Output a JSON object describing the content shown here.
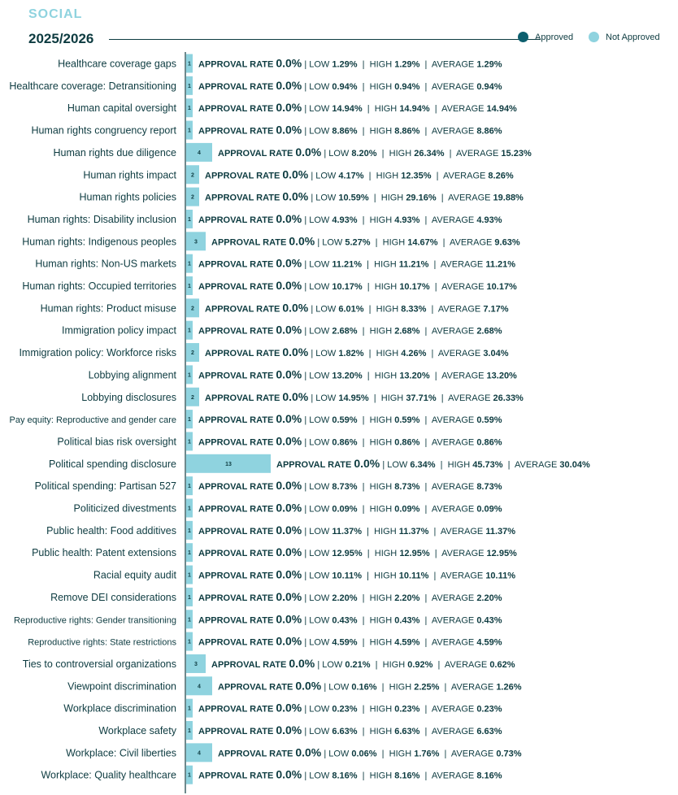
{
  "header": {
    "section": "SOCIAL",
    "year": "2025/2026",
    "legend": [
      {
        "label": "Approved",
        "color": "#0d5f6e"
      },
      {
        "label": "Not Approved",
        "color": "#8fd3df"
      }
    ]
  },
  "labels": {
    "approval_rate": "APPROVAL RATE",
    "low": "LOW",
    "high": "HIGH",
    "average": "AVERAGE",
    "separator": "|"
  },
  "chart_data": {
    "type": "bar",
    "orientation": "horizontal",
    "title": "SOCIAL",
    "subtitle": "2025/2026",
    "series": [
      {
        "name": "Approved",
        "color": "#0d5f6e"
      },
      {
        "name": "Not Approved",
        "color": "#8fd3df"
      }
    ],
    "rows": [
      {
        "category": "Healthcare coverage gaps",
        "count": 1,
        "approval_rate": "0.0%",
        "low": "1.29%",
        "high": "1.29%",
        "average": "1.29%"
      },
      {
        "category": "Healthcare coverage: Detransitioning",
        "count": 1,
        "approval_rate": "0.0%",
        "low": "0.94%",
        "high": "0.94%",
        "average": "0.94%"
      },
      {
        "category": "Human capital oversight",
        "count": 1,
        "approval_rate": "0.0%",
        "low": "14.94%",
        "high": "14.94%",
        "average": "14.94%"
      },
      {
        "category": "Human rights congruency report",
        "count": 1,
        "approval_rate": "0.0%",
        "low": "8.86%",
        "high": "8.86%",
        "average": "8.86%"
      },
      {
        "category": "Human rights due diligence",
        "count": 4,
        "approval_rate": "0.0%",
        "low": "8.20%",
        "high": "26.34%",
        "average": "15.23%"
      },
      {
        "category": "Human rights impact",
        "count": 2,
        "approval_rate": "0.0%",
        "low": "4.17%",
        "high": "12.35%",
        "average": "8.26%"
      },
      {
        "category": "Human rights policies",
        "count": 2,
        "approval_rate": "0.0%",
        "low": "10.59%",
        "high": "29.16%",
        "average": "19.88%"
      },
      {
        "category": "Human rights: Disability inclusion",
        "count": 1,
        "approval_rate": "0.0%",
        "low": "4.93%",
        "high": "4.93%",
        "average": "4.93%"
      },
      {
        "category": "Human rights: Indigenous peoples",
        "count": 3,
        "approval_rate": "0.0%",
        "low": "5.27%",
        "high": "14.67%",
        "average": "9.63%"
      },
      {
        "category": "Human rights: Non-US markets",
        "count": 1,
        "approval_rate": "0.0%",
        "low": "11.21%",
        "high": "11.21%",
        "average": "11.21%"
      },
      {
        "category": "Human rights: Occupied territories",
        "count": 1,
        "approval_rate": "0.0%",
        "low": "10.17%",
        "high": "10.17%",
        "average": "10.17%"
      },
      {
        "category": "Human rights: Product misuse",
        "count": 2,
        "approval_rate": "0.0%",
        "low": "6.01%",
        "high": "8.33%",
        "average": "7.17%"
      },
      {
        "category": "Immigration policy impact",
        "count": 1,
        "approval_rate": "0.0%",
        "low": "2.68%",
        "high": "2.68%",
        "average": "2.68%"
      },
      {
        "category": "Immigration policy: Workforce risks",
        "count": 2,
        "approval_rate": "0.0%",
        "low": "1.82%",
        "high": "4.26%",
        "average": "3.04%"
      },
      {
        "category": "Lobbying alignment",
        "count": 1,
        "approval_rate": "0.0%",
        "low": "13.20%",
        "high": "13.20%",
        "average": "13.20%"
      },
      {
        "category": "Lobbying disclosures",
        "count": 2,
        "approval_rate": "0.0%",
        "low": "14.95%",
        "high": "37.71%",
        "average": "26.33%"
      },
      {
        "category": "Pay equity: Reproductive and gender care",
        "count": 1,
        "approval_rate": "0.0%",
        "low": "0.59%",
        "high": "0.59%",
        "average": "0.59%"
      },
      {
        "category": "Political bias risk oversight",
        "count": 1,
        "approval_rate": "0.0%",
        "low": "0.86%",
        "high": "0.86%",
        "average": "0.86%"
      },
      {
        "category": "Political spending disclosure",
        "count": 13,
        "approval_rate": "0.0%",
        "low": "6.34%",
        "high": "45.73%",
        "average": "30.04%"
      },
      {
        "category": "Political spending: Partisan 527",
        "count": 1,
        "approval_rate": "0.0%",
        "low": "8.73%",
        "high": "8.73%",
        "average": "8.73%"
      },
      {
        "category": "Politicized divestments",
        "count": 1,
        "approval_rate": "0.0%",
        "low": "0.09%",
        "high": "0.09%",
        "average": "0.09%"
      },
      {
        "category": "Public health: Food additives",
        "count": 1,
        "approval_rate": "0.0%",
        "low": "11.37%",
        "high": "11.37%",
        "average": "11.37%"
      },
      {
        "category": "Public health: Patent extensions",
        "count": 1,
        "approval_rate": "0.0%",
        "low": "12.95%",
        "high": "12.95%",
        "average": "12.95%"
      },
      {
        "category": "Racial equity audit",
        "count": 1,
        "approval_rate": "0.0%",
        "low": "10.11%",
        "high": "10.11%",
        "average": "10.11%"
      },
      {
        "category": "Remove DEI considerations",
        "count": 1,
        "approval_rate": "0.0%",
        "low": "2.20%",
        "high": "2.20%",
        "average": "2.20%"
      },
      {
        "category": "Reproductive rights: Gender transitioning",
        "count": 1,
        "approval_rate": "0.0%",
        "low": "0.43%",
        "high": "0.43%",
        "average": "0.43%"
      },
      {
        "category": "Reproductive rights: State restrictions",
        "count": 1,
        "approval_rate": "0.0%",
        "low": "4.59%",
        "high": "4.59%",
        "average": "4.59%"
      },
      {
        "category": "Ties to controversial organizations",
        "count": 3,
        "approval_rate": "0.0%",
        "low": "0.21%",
        "high": "0.92%",
        "average": "0.62%"
      },
      {
        "category": "Viewpoint discrimination",
        "count": 4,
        "approval_rate": "0.0%",
        "low": "0.16%",
        "high": "2.25%",
        "average": "1.26%"
      },
      {
        "category": "Workplace discrimination",
        "count": 1,
        "approval_rate": "0.0%",
        "low": "0.23%",
        "high": "0.23%",
        "average": "0.23%"
      },
      {
        "category": "Workplace safety",
        "count": 1,
        "approval_rate": "0.0%",
        "low": "6.63%",
        "high": "6.63%",
        "average": "6.63%"
      },
      {
        "category": "Workplace: Civil liberties",
        "count": 4,
        "approval_rate": "0.0%",
        "low": "0.06%",
        "high": "1.76%",
        "average": "0.73%"
      },
      {
        "category": "Workplace: Quality healthcare",
        "count": 1,
        "approval_rate": "0.0%",
        "low": "8.16%",
        "high": "8.16%",
        "average": "8.16%"
      }
    ]
  }
}
